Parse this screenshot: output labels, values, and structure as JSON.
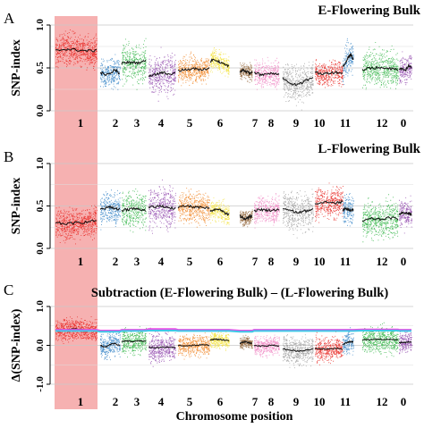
{
  "xlabel": "Chromosome position",
  "highlight_colour": "#f5a3a3",
  "colours": {
    "1": "#e8231f",
    "2": "#2e7fc4",
    "3": "#2db342",
    "4": "#8c3fa9",
    "5": "#f07f1a",
    "6": "#f2e030",
    "7": "#8b5a2b",
    "8": "#ee7fbf",
    "9": "#999999",
    "10": "#e8231f",
    "11": "#2e7fc4",
    "12": "#2db342",
    "0": "#8c3fa9",
    "trend": "#111111",
    "threshold_upper": "#e64fe6",
    "threshold_lower": "#3fc8e6"
  },
  "chart_data": [
    {
      "type": "scatter",
      "panel_letter": "A",
      "title": "E-Flowering Bulk",
      "ylabel": "SNP-index",
      "ylim": [
        0,
        1
      ],
      "yticks": [
        "0.0",
        "0.5",
        "1.0"
      ],
      "ytick_values": [
        0,
        0.5,
        1
      ],
      "grid": true,
      "chromosomes": [
        "1",
        "2",
        "3",
        "4",
        "5",
        "6",
        "7",
        "8",
        "9",
        "10",
        "11",
        "12",
        "0"
      ],
      "series": [
        {
          "chromosome": "1",
          "trend": [
            0.7,
            0.72,
            0.71,
            0.7,
            0.7
          ],
          "spread": 0.3
        },
        {
          "chromosome": "2",
          "trend": [
            0.45,
            0.42,
            0.44,
            0.48,
            0.43
          ],
          "spread": 0.28
        },
        {
          "chromosome": "3",
          "trend": [
            0.55,
            0.57,
            0.56,
            0.56,
            0.58
          ],
          "spread": 0.35
        },
        {
          "chromosome": "4",
          "trend": [
            0.4,
            0.42,
            0.45,
            0.43,
            0.44
          ],
          "spread": 0.38
        },
        {
          "chromosome": "5",
          "trend": [
            0.47,
            0.48,
            0.49,
            0.48,
            0.5
          ],
          "spread": 0.25
        },
        {
          "chromosome": "6",
          "trend": [
            0.58,
            0.6,
            0.57,
            0.54,
            0.52
          ],
          "spread": 0.2
        },
        {
          "chromosome": "7",
          "trend": [
            0.45,
            0.48,
            0.46,
            0.44,
            0.45
          ],
          "spread": 0.15
        },
        {
          "chromosome": "8",
          "trend": [
            0.45,
            0.42,
            0.43,
            0.44,
            0.43
          ],
          "spread": 0.25
        },
        {
          "chromosome": "9",
          "trend": [
            0.38,
            0.32,
            0.3,
            0.35,
            0.4
          ],
          "spread": 0.35
        },
        {
          "chromosome": "10",
          "trend": [
            0.45,
            0.43,
            0.44,
            0.45,
            0.44
          ],
          "spread": 0.25
        },
        {
          "chromosome": "11",
          "trend": [
            0.5,
            0.56,
            0.62,
            0.66,
            0.6
          ],
          "spread": 0.3
        },
        {
          "chromosome": "12",
          "trend": [
            0.48,
            0.5,
            0.5,
            0.49,
            0.48
          ],
          "spread": 0.35
        },
        {
          "chromosome": "0",
          "trend": [
            0.48,
            0.5,
            0.47,
            0.52,
            0.5
          ],
          "spread": 0.25
        }
      ]
    },
    {
      "type": "scatter",
      "panel_letter": "B",
      "title": "L-Flowering Bulk",
      "ylabel": "SNP-index",
      "ylim": [
        0,
        1
      ],
      "yticks": [
        "0.0",
        "0.5",
        "1.0"
      ],
      "ytick_values": [
        0,
        0.5,
        1
      ],
      "grid": true,
      "chromosomes": [
        "1",
        "2",
        "3",
        "4",
        "5",
        "6",
        "7",
        "8",
        "9",
        "10",
        "11",
        "12",
        "0"
      ],
      "series": [
        {
          "chromosome": "1",
          "trend": [
            0.3,
            0.29,
            0.3,
            0.31,
            0.33
          ],
          "spread": 0.3
        },
        {
          "chromosome": "2",
          "trend": [
            0.46,
            0.47,
            0.49,
            0.47,
            0.46
          ],
          "spread": 0.3
        },
        {
          "chromosome": "3",
          "trend": [
            0.45,
            0.46,
            0.47,
            0.46,
            0.45
          ],
          "spread": 0.35
        },
        {
          "chromosome": "4",
          "trend": [
            0.48,
            0.49,
            0.5,
            0.48,
            0.47
          ],
          "spread": 0.4
        },
        {
          "chromosome": "5",
          "trend": [
            0.48,
            0.5,
            0.49,
            0.48,
            0.47
          ],
          "spread": 0.3
        },
        {
          "chromosome": "6",
          "trend": [
            0.44,
            0.46,
            0.47,
            0.42,
            0.4
          ],
          "spread": 0.2
        },
        {
          "chromosome": "7",
          "trend": [
            0.38,
            0.36,
            0.35,
            0.37,
            0.38
          ],
          "spread": 0.15
        },
        {
          "chromosome": "8",
          "trend": [
            0.44,
            0.46,
            0.45,
            0.45,
            0.46
          ],
          "spread": 0.25
        },
        {
          "chromosome": "9",
          "trend": [
            0.47,
            0.45,
            0.42,
            0.44,
            0.46
          ],
          "spread": 0.38
        },
        {
          "chromosome": "10",
          "trend": [
            0.52,
            0.55,
            0.54,
            0.53,
            0.55
          ],
          "spread": 0.3
        },
        {
          "chromosome": "11",
          "trend": [
            0.45,
            0.47,
            0.46,
            0.45,
            0.46
          ],
          "spread": 0.3
        },
        {
          "chromosome": "12",
          "trend": [
            0.32,
            0.35,
            0.34,
            0.36,
            0.35
          ],
          "spread": 0.35
        },
        {
          "chromosome": "0",
          "trend": [
            0.4,
            0.42,
            0.41,
            0.42,
            0.4
          ],
          "spread": 0.25
        }
      ]
    },
    {
      "type": "scatter",
      "panel_letter": "C",
      "title": "Subtraction (E-Flowering Bulk) – (L-Flowering Bulk)",
      "ylabel": "Δ(SNP-index)",
      "ylim": [
        -1,
        1
      ],
      "yticks": [
        "-1.0",
        "0.0",
        "1.0"
      ],
      "ytick_values": [
        -1,
        0,
        1
      ],
      "grid": true,
      "threshold_upper": [
        0.4,
        0.38,
        0.4,
        0.42,
        0.4,
        0.4,
        0.38,
        0.4,
        0.4,
        0.4,
        0.4,
        0.41,
        0.4
      ],
      "threshold_lower": [
        0.37,
        0.35,
        0.37,
        0.38,
        0.37,
        0.37,
        0.35,
        0.37,
        0.37,
        0.37,
        0.37,
        0.38,
        0.37
      ],
      "chromosomes": [
        "1",
        "2",
        "3",
        "4",
        "5",
        "6",
        "7",
        "8",
        "9",
        "10",
        "11",
        "12",
        "0"
      ],
      "series": [
        {
          "chromosome": "1",
          "trend": [
            0.4,
            0.41,
            0.42,
            0.4,
            0.38
          ],
          "spread": 0.45
        },
        {
          "chromosome": "2",
          "trend": [
            0.0,
            -0.05,
            0.02,
            0.05,
            0.0
          ],
          "spread": 0.5
        },
        {
          "chromosome": "3",
          "trend": [
            0.1,
            0.11,
            0.1,
            0.12,
            0.11
          ],
          "spread": 0.55
        },
        {
          "chromosome": "4",
          "trend": [
            -0.05,
            -0.06,
            -0.05,
            -0.04,
            -0.06
          ],
          "spread": 0.6
        },
        {
          "chromosome": "5",
          "trend": [
            0.0,
            -0.01,
            0.0,
            0.01,
            0.0
          ],
          "spread": 0.45
        },
        {
          "chromosome": "6",
          "trend": [
            0.14,
            0.16,
            0.15,
            0.13,
            0.12
          ],
          "spread": 0.35
        },
        {
          "chromosome": "7",
          "trend": [
            0.05,
            0.08,
            0.1,
            0.06,
            0.05
          ],
          "spread": 0.25
        },
        {
          "chromosome": "8",
          "trend": [
            0.0,
            -0.02,
            -0.01,
            0.0,
            -0.01
          ],
          "spread": 0.4
        },
        {
          "chromosome": "9",
          "trend": [
            -0.1,
            -0.12,
            -0.15,
            -0.12,
            -0.1
          ],
          "spread": 0.6
        },
        {
          "chromosome": "10",
          "trend": [
            -0.08,
            -0.1,
            -0.09,
            -0.08,
            -0.1
          ],
          "spread": 0.5
        },
        {
          "chromosome": "11",
          "trend": [
            0.02,
            0.05,
            0.08,
            0.1,
            0.08
          ],
          "spread": 0.45
        },
        {
          "chromosome": "12",
          "trend": [
            0.14,
            0.15,
            0.16,
            0.15,
            0.14
          ],
          "spread": 0.55
        },
        {
          "chromosome": "0",
          "trend": [
            0.06,
            0.08,
            0.07,
            0.09,
            0.08
          ],
          "spread": 0.4
        }
      ]
    }
  ]
}
